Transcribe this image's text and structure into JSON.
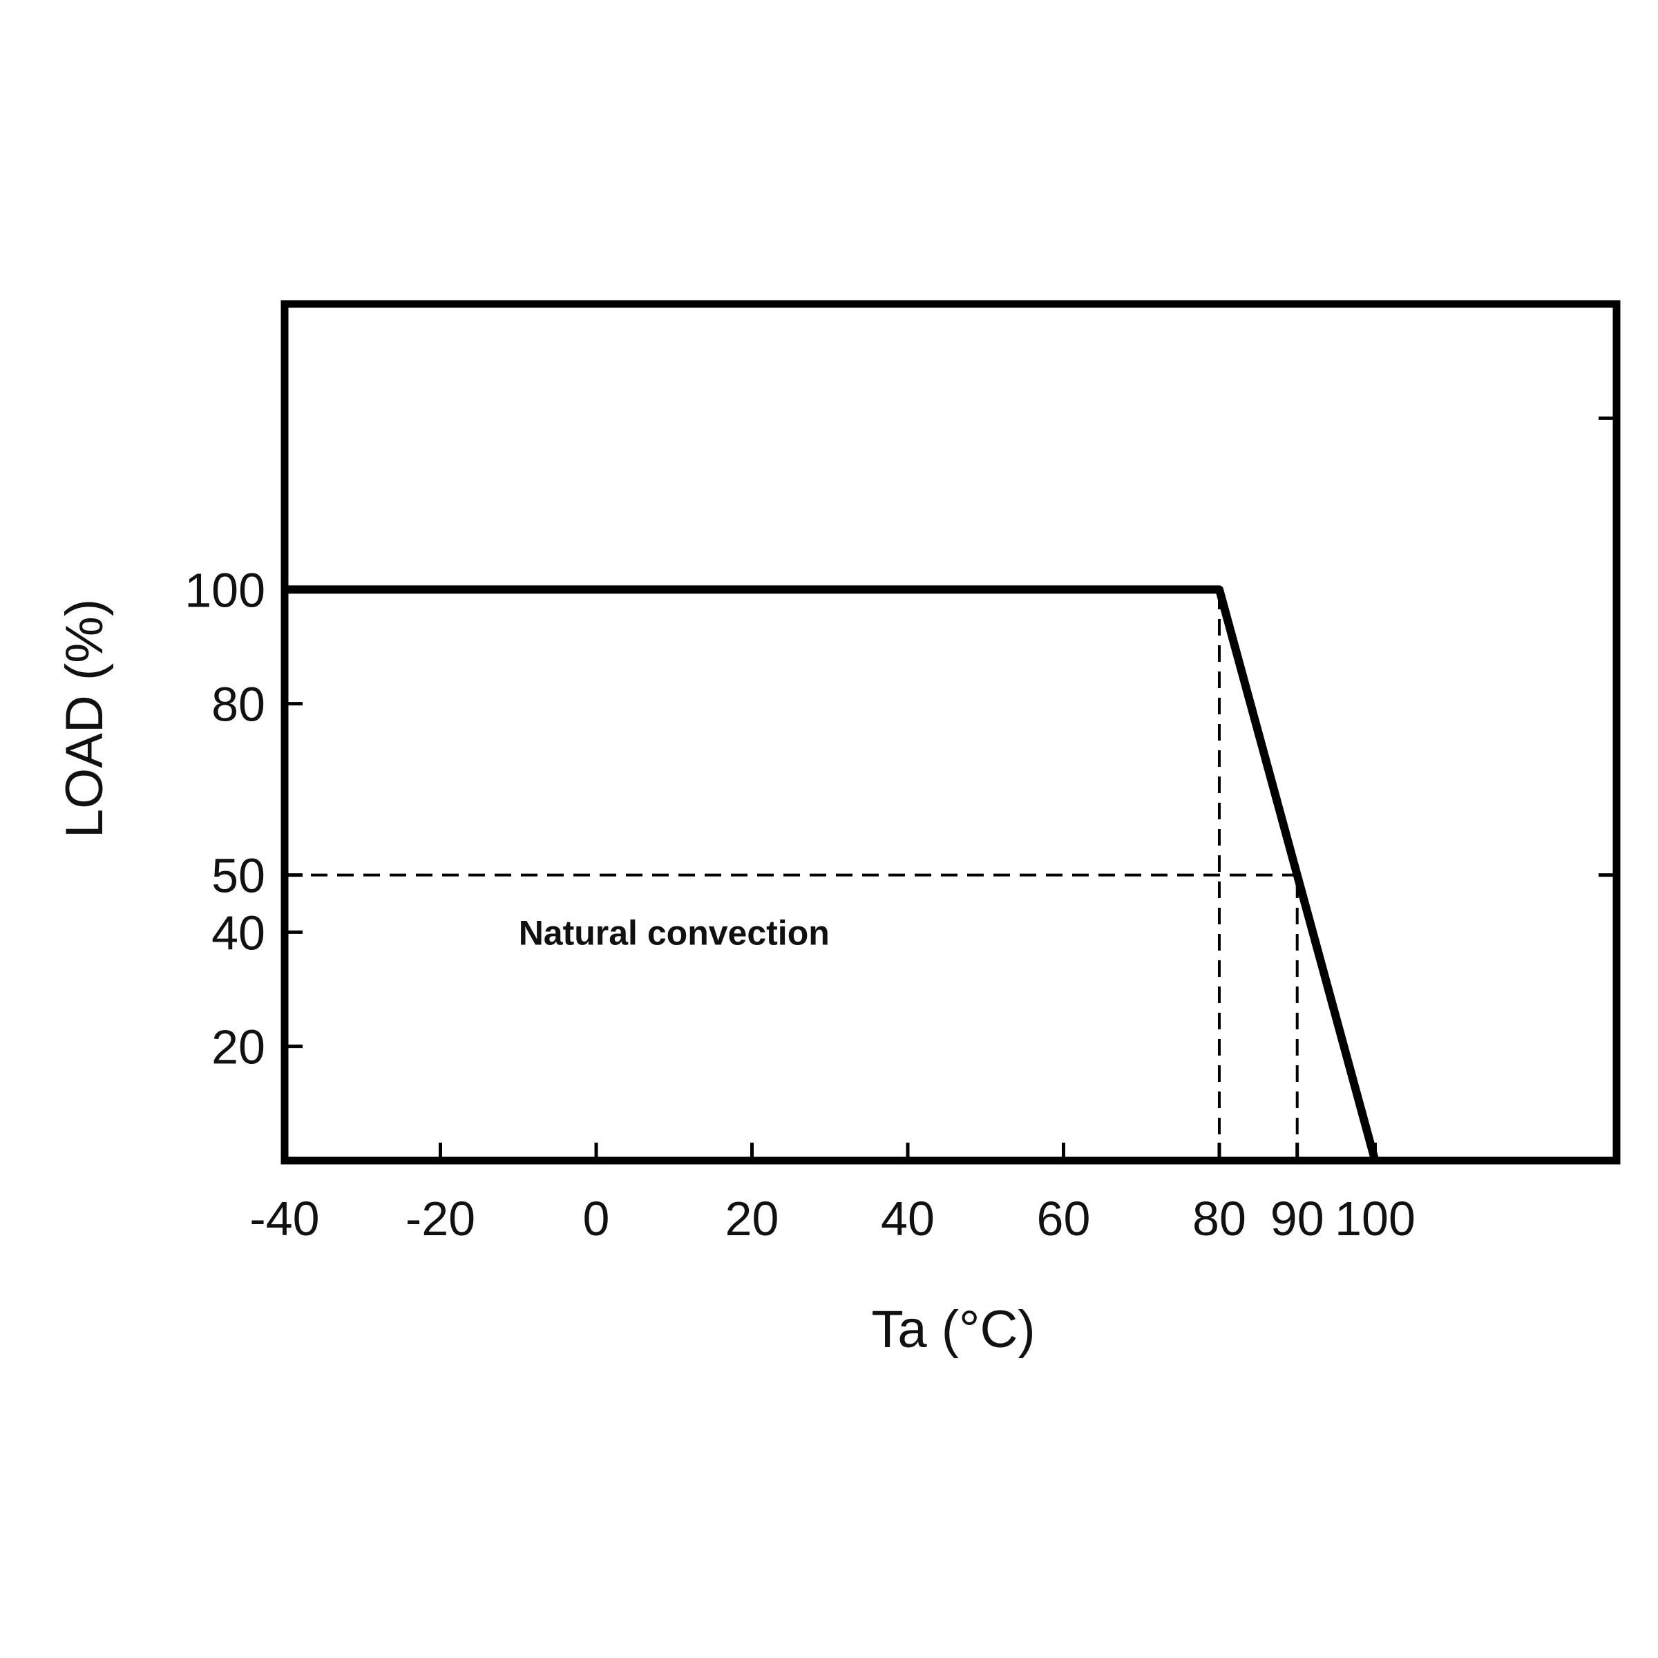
{
  "chart_data": {
    "type": "line",
    "title": "",
    "xlabel": "Ta (°C)",
    "ylabel": "LOAD (%)",
    "x_ticks": [
      -40,
      -20,
      0,
      20,
      40,
      60,
      80,
      90,
      100
    ],
    "x_tick_labels": [
      "-40",
      "-20",
      "0",
      "20",
      "40",
      "60",
      "80",
      "90",
      "100"
    ],
    "y_ticks": [
      20,
      40,
      50,
      80,
      100
    ],
    "y_tick_labels": [
      "20",
      "40",
      "50",
      "80",
      "100"
    ],
    "xlim": [
      -40,
      131
    ],
    "ylim": [
      0,
      150
    ],
    "grid": false,
    "series": [
      {
        "x": [
          -40,
          80,
          90,
          100
        ],
        "y": [
          100,
          100,
          50,
          0
        ]
      }
    ],
    "reference_lines": [
      {
        "style": "dashed",
        "x": [
          80,
          80
        ],
        "y": [
          0,
          100
        ]
      },
      {
        "style": "dashed",
        "x": [
          90,
          90
        ],
        "y": [
          0,
          50
        ]
      },
      {
        "style": "dashed",
        "x": [
          -40,
          90
        ],
        "y": [
          50,
          50
        ]
      }
    ],
    "annotations": [
      {
        "text": "Natural convection",
        "x": 10,
        "y": 40
      }
    ],
    "colors": {
      "line": "#000000",
      "frame": "#000000",
      "text": "#111111"
    }
  }
}
